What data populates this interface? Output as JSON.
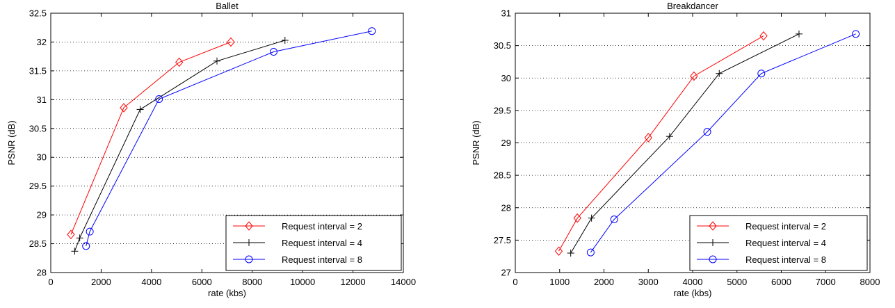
{
  "chart_data": [
    {
      "type": "line",
      "title": "Ballet",
      "xlabel": "rate (kbs)",
      "ylabel": "PSNR (dB)",
      "xlim": [
        0,
        14000
      ],
      "ylim": [
        28,
        32.5
      ],
      "xticks": [
        0,
        2000,
        4000,
        6000,
        8000,
        10000,
        12000,
        14000
      ],
      "yticks": [
        28,
        28.5,
        29,
        29.5,
        30,
        30.5,
        31,
        31.5,
        32,
        32.5
      ],
      "xtick_labels": [
        "0",
        "2000",
        "4000",
        "6000",
        "8000",
        "10000",
        "12000",
        "14000"
      ],
      "ytick_labels": [
        "28",
        "28.5",
        "29",
        "29.5",
        "30",
        "30.5",
        "31",
        "31.5",
        "32",
        "32.5"
      ],
      "grid": "horizontal-dotted",
      "legend_position": "bottom-right",
      "series": [
        {
          "name": "Request interval = 2",
          "color": "#ff0000",
          "marker": "diamond",
          "x": [
            800,
            2900,
            5100,
            7150
          ],
          "y": [
            28.66,
            30.86,
            31.65,
            32.0
          ]
        },
        {
          "name": "Request interval = 4",
          "color": "#000000",
          "marker": "plus",
          "x": [
            950,
            1150,
            3550,
            6600,
            9300
          ],
          "y": [
            28.37,
            28.6,
            30.83,
            31.67,
            32.03
          ]
        },
        {
          "name": "Request interval = 8",
          "color": "#0000ff",
          "marker": "circle",
          "x": [
            1400,
            1550,
            4300,
            8850,
            12750
          ],
          "y": [
            28.46,
            28.71,
            31.01,
            31.83,
            32.19
          ]
        }
      ]
    },
    {
      "type": "line",
      "title": "Breakdancer",
      "xlabel": "rate (kbs)",
      "ylabel": "PSNR (dB)",
      "xlim": [
        0,
        8000
      ],
      "ylim": [
        27,
        31
      ],
      "xticks": [
        0,
        1000,
        2000,
        3000,
        4000,
        5000,
        6000,
        7000,
        8000
      ],
      "yticks": [
        27,
        27.5,
        28,
        28.5,
        29,
        29.5,
        30,
        30.5,
        31
      ],
      "xtick_labels": [
        "0",
        "1000",
        "2000",
        "3000",
        "4000",
        "5000",
        "6000",
        "7000",
        "8000"
      ],
      "ytick_labels": [
        "27",
        "27.5",
        "28",
        "28.5",
        "29",
        "29.5",
        "30",
        "30.5",
        "31"
      ],
      "grid": "horizontal-dotted",
      "legend_position": "bottom-right",
      "series": [
        {
          "name": "Request interval = 2",
          "color": "#ff0000",
          "marker": "diamond",
          "x": [
            980,
            1400,
            3000,
            4030,
            5600
          ],
          "y": [
            27.33,
            27.84,
            29.08,
            30.03,
            30.65
          ]
        },
        {
          "name": "Request interval = 4",
          "color": "#000000",
          "marker": "plus",
          "x": [
            1250,
            1720,
            3480,
            4600,
            6400
          ],
          "y": [
            27.3,
            27.84,
            29.1,
            30.07,
            30.68
          ]
        },
        {
          "name": "Request interval = 8",
          "color": "#0000ff",
          "marker": "circle",
          "x": [
            1700,
            2230,
            4330,
            5550,
            7680
          ],
          "y": [
            27.31,
            27.82,
            29.17,
            30.07,
            30.68
          ]
        }
      ]
    }
  ]
}
